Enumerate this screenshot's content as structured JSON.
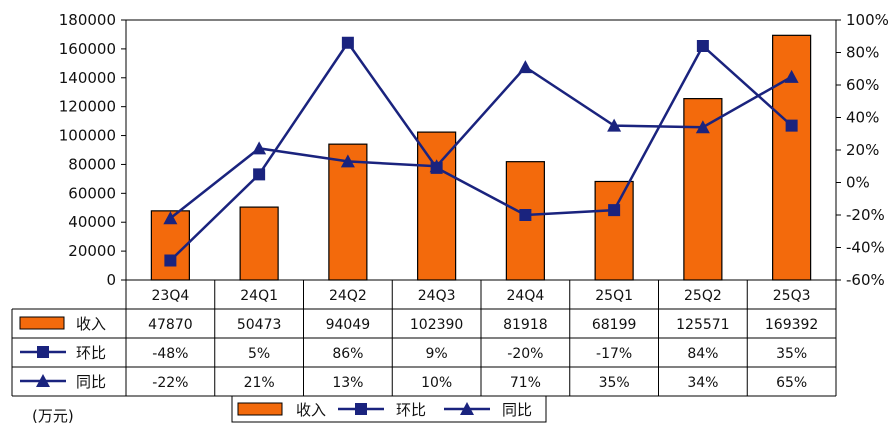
{
  "chart_data": {
    "type": "bar",
    "unit_label": "(万元)",
    "categories": [
      "23Q4",
      "24Q1",
      "24Q2",
      "24Q3",
      "24Q4",
      "25Q1",
      "25Q2",
      "25Q3"
    ],
    "series": [
      {
        "name": "收入",
        "kind": "bar",
        "axis": "left",
        "color": "#f36a0c",
        "values": [
          47870,
          50473,
          94049,
          102390,
          81918,
          68199,
          125571,
          169392
        ],
        "labels": [
          "47870",
          "50473",
          "94049",
          "102390",
          "81918",
          "68199",
          "125571",
          "169392"
        ]
      },
      {
        "name": "环比",
        "kind": "line",
        "marker": "square",
        "axis": "right",
        "color": "#1a237e",
        "values": [
          -48,
          5,
          86,
          9,
          -20,
          -17,
          84,
          35
        ],
        "labels": [
          "-48%",
          "5%",
          "86%",
          "9%",
          "-20%",
          "-17%",
          "84%",
          "35%"
        ]
      },
      {
        "name": "同比",
        "kind": "line",
        "marker": "triangle",
        "axis": "right",
        "color": "#1a237e",
        "values": [
          -22,
          21,
          13,
          10,
          71,
          35,
          34,
          65
        ],
        "labels": [
          "-22%",
          "21%",
          "13%",
          "10%",
          "71%",
          "35%",
          "34%",
          "65%"
        ]
      }
    ],
    "y_left": {
      "ylim": [
        0,
        180000
      ],
      "ticks": [
        "0",
        "20000",
        "40000",
        "60000",
        "80000",
        "100000",
        "120000",
        "140000",
        "160000",
        "180000"
      ]
    },
    "y_right": {
      "ylim": [
        -60,
        100
      ],
      "ticks": [
        "-60%",
        "-40%",
        "-20%",
        "0%",
        "20%",
        "40%",
        "60%",
        "80%",
        "100%"
      ]
    },
    "legend_position": "bottom",
    "data_table": true
  }
}
